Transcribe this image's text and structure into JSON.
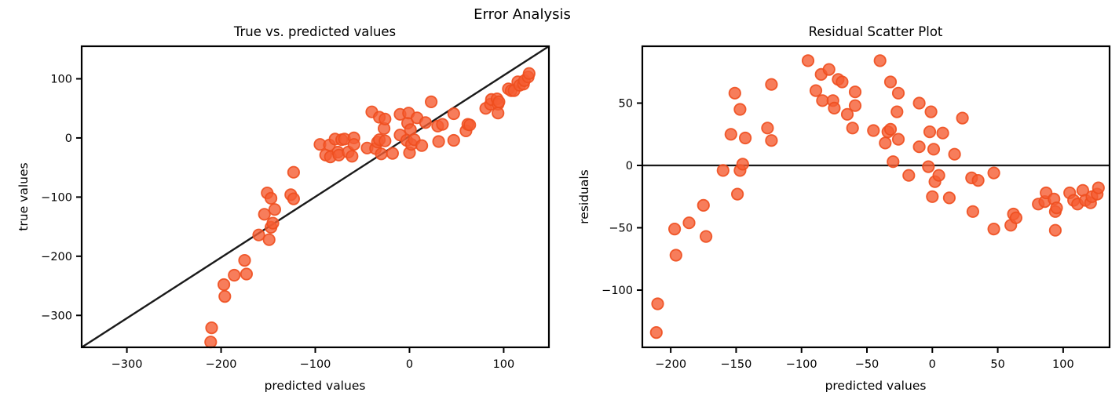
{
  "figure": {
    "title": "Error Analysis"
  },
  "style": {
    "marker_fill": "#f55d32",
    "marker_fill_opacity": 0.8,
    "marker_edge": "#ee4e1e",
    "marker_edge_opacity": 0.9,
    "line_color": "#1a1a1a",
    "spine_color": "#000000",
    "text_color": "#000000"
  },
  "chart_data": [
    {
      "type": "scatter",
      "title": "True vs. predicted values",
      "xlabel": "predicted values",
      "ylabel": "true values",
      "xlim": [
        -348,
        148
      ],
      "ylim": [
        -354,
        155
      ],
      "xticks": [
        -300,
        -200,
        -100,
        0,
        100
      ],
      "yticks": [
        100,
        0,
        -100,
        -200,
        -300
      ],
      "grid": false,
      "legend": null,
      "ref_line": {
        "kind": "identity-diagonal",
        "from": [
          -348,
          -354
        ],
        "to": [
          148,
          155
        ]
      },
      "points": [
        [
          -211,
          -345
        ],
        [
          -210,
          -321
        ],
        [
          -197,
          -248
        ],
        [
          -196,
          -268
        ],
        [
          -186,
          -232
        ],
        [
          -175,
          -207
        ],
        [
          -173,
          -230
        ],
        [
          -160,
          -164
        ],
        [
          -154,
          -129
        ],
        [
          -151,
          -93
        ],
        [
          -149,
          -172
        ],
        [
          -147,
          -102
        ],
        [
          -147,
          -151
        ],
        [
          -145,
          -144
        ],
        [
          -143,
          -121
        ],
        [
          -126,
          -96
        ],
        [
          -123,
          -58
        ],
        [
          -123,
          -103
        ],
        [
          -95,
          -11
        ],
        [
          -89,
          -29
        ],
        [
          -85,
          -12
        ],
        [
          -84,
          -32
        ],
        [
          -79,
          -2
        ],
        [
          -76,
          -24
        ],
        [
          -75,
          -29
        ],
        [
          -72,
          -3
        ],
        [
          -69,
          -2
        ],
        [
          -65,
          -24
        ],
        [
          -61,
          -31
        ],
        [
          -59,
          0
        ],
        [
          -59,
          -11
        ],
        [
          -45,
          -17
        ],
        [
          -40,
          44
        ],
        [
          -36,
          -18
        ],
        [
          -34,
          -7
        ],
        [
          -32,
          35
        ],
        [
          -32,
          -3
        ],
        [
          -30,
          -27
        ],
        [
          -27,
          16
        ],
        [
          -26,
          32
        ],
        [
          -26,
          -5
        ],
        [
          -18,
          -26
        ],
        [
          -10,
          40
        ],
        [
          -10,
          5
        ],
        [
          -3,
          -4
        ],
        [
          -2,
          25
        ],
        [
          -1,
          42
        ],
        [
          0,
          -25
        ],
        [
          1,
          14
        ],
        [
          2,
          -11
        ],
        [
          5,
          -3
        ],
        [
          8,
          34
        ],
        [
          13,
          -13
        ],
        [
          17,
          26
        ],
        [
          23,
          61
        ],
        [
          30,
          20
        ],
        [
          31,
          -6
        ],
        [
          35,
          23
        ],
        [
          47,
          41
        ],
        [
          47,
          -4
        ],
        [
          60,
          12
        ],
        [
          62,
          23
        ],
        [
          64,
          22
        ],
        [
          81,
          50
        ],
        [
          86,
          57
        ],
        [
          87,
          65
        ],
        [
          93,
          66
        ],
        [
          94,
          57
        ],
        [
          94,
          42
        ],
        [
          95,
          61
        ],
        [
          105,
          83
        ],
        [
          108,
          80
        ],
        [
          111,
          80
        ],
        [
          115,
          95
        ],
        [
          117,
          89
        ],
        [
          121,
          91
        ],
        [
          122,
          97
        ],
        [
          126,
          103
        ],
        [
          127,
          109
        ]
      ]
    },
    {
      "type": "scatter",
      "title": "Residual Scatter Plot",
      "xlabel": "predicted values",
      "ylabel": "residuals",
      "xlim": [
        -221.7,
        135.5
      ],
      "ylim": [
        -145.9,
        95.6
      ],
      "xticks": [
        -200,
        -150,
        -100,
        -50,
        0,
        50,
        100
      ],
      "yticks": [
        50,
        0,
        -50,
        -100
      ],
      "grid": false,
      "legend": null,
      "ref_line": {
        "kind": "zero-horizontal",
        "y": 0
      },
      "points": [
        [
          -211,
          -134
        ],
        [
          -210,
          -111
        ],
        [
          -197,
          -51
        ],
        [
          -196,
          -72
        ],
        [
          -186,
          -46
        ],
        [
          -175,
          -32
        ],
        [
          -173,
          -57
        ],
        [
          -160,
          -4
        ],
        [
          -154,
          25
        ],
        [
          -151,
          58
        ],
        [
          -149,
          -23
        ],
        [
          -147,
          45
        ],
        [
          -147,
          -4
        ],
        [
          -145,
          1
        ],
        [
          -143,
          22
        ],
        [
          -126,
          30
        ],
        [
          -123,
          65
        ],
        [
          -123,
          20
        ],
        [
          -95,
          84
        ],
        [
          -89,
          60
        ],
        [
          -85,
          73
        ],
        [
          -84,
          52
        ],
        [
          -79,
          77
        ],
        [
          -76,
          52
        ],
        [
          -75,
          46
        ],
        [
          -72,
          69
        ],
        [
          -69,
          67
        ],
        [
          -65,
          41
        ],
        [
          -61,
          30
        ],
        [
          -59,
          59
        ],
        [
          -59,
          48
        ],
        [
          -45,
          28
        ],
        [
          -40,
          84
        ],
        [
          -36,
          18
        ],
        [
          -34,
          27
        ],
        [
          -32,
          67
        ],
        [
          -32,
          29
        ],
        [
          -30,
          3
        ],
        [
          -27,
          43
        ],
        [
          -26,
          58
        ],
        [
          -26,
          21
        ],
        [
          -18,
          -8
        ],
        [
          -10,
          50
        ],
        [
          -10,
          15
        ],
        [
          -3,
          -1
        ],
        [
          -2,
          27
        ],
        [
          -1,
          43
        ],
        [
          0,
          -25
        ],
        [
          1,
          13
        ],
        [
          2,
          -13
        ],
        [
          5,
          -8
        ],
        [
          8,
          26
        ],
        [
          13,
          -26
        ],
        [
          17,
          9
        ],
        [
          23,
          38
        ],
        [
          30,
          -10
        ],
        [
          31,
          -37
        ],
        [
          35,
          -12
        ],
        [
          47,
          -6
        ],
        [
          47,
          -51
        ],
        [
          60,
          -48
        ],
        [
          62,
          -39
        ],
        [
          64,
          -42
        ],
        [
          81,
          -31
        ],
        [
          86,
          -29
        ],
        [
          87,
          -22
        ],
        [
          93,
          -27
        ],
        [
          94,
          -37
        ],
        [
          94,
          -52
        ],
        [
          95,
          -34
        ],
        [
          105,
          -22
        ],
        [
          108,
          -28
        ],
        [
          111,
          -31
        ],
        [
          115,
          -20
        ],
        [
          117,
          -28
        ],
        [
          121,
          -30
        ],
        [
          122,
          -25
        ],
        [
          126,
          -23
        ],
        [
          127,
          -18
        ]
      ]
    }
  ]
}
